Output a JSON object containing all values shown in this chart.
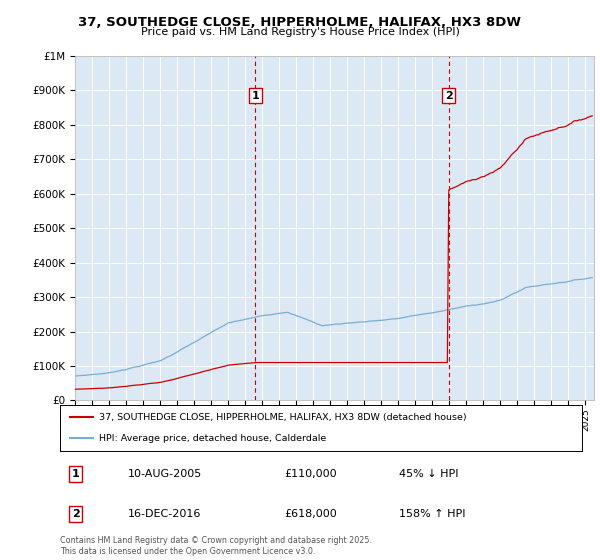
{
  "title_line1": "37, SOUTHEDGE CLOSE, HIPPERHOLME, HALIFAX, HX3 8DW",
  "title_line2": "Price paid vs. HM Land Registry's House Price Index (HPI)",
  "legend_label_red": "37, SOUTHEDGE CLOSE, HIPPERHOLME, HALIFAX, HX3 8DW (detached house)",
  "legend_label_blue": "HPI: Average price, detached house, Calderdale",
  "marker1_date": "10-AUG-2005",
  "marker1_price": 110000,
  "marker1_label": "45% ↓ HPI",
  "marker1_year": 2005.6,
  "marker2_date": "16-DEC-2016",
  "marker2_price": 618000,
  "marker2_label": "158% ↑ HPI",
  "marker2_year": 2016.95,
  "footer": "Contains HM Land Registry data © Crown copyright and database right 2025.\nThis data is licensed under the Open Government Licence v3.0.",
  "bg_color": "#dce9f5",
  "red_color": "#cc0000",
  "blue_color": "#7aadd4",
  "ylim_max": 1000000,
  "xlim_min": 1995,
  "xlim_max": 2025.5
}
